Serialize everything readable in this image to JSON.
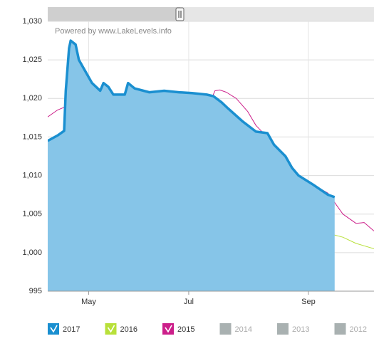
{
  "chart_data": {
    "type": "line",
    "annotation": "Powered by www.LakeLevels.info",
    "xlim": [
      97,
      296
    ],
    "xticks": [
      {
        "value": 122,
        "label": "May"
      },
      {
        "value": 183,
        "label": "Jul"
      },
      {
        "value": 256,
        "label": "Sep"
      }
    ],
    "ylim": [
      995,
      1030
    ],
    "yticks": [
      995,
      {
        "value": 1000,
        "label": "1,000"
      },
      {
        "value": 1005,
        "label": "1,005"
      },
      {
        "value": 1010,
        "label": "1,010"
      },
      {
        "value": 1015,
        "label": "1,015"
      },
      {
        "value": 1020,
        "label": "1,020"
      },
      {
        "value": 1025,
        "label": "1,025"
      },
      {
        "value": 1030,
        "label": "1,030"
      }
    ],
    "grid": true,
    "series": [
      {
        "name": "2017",
        "color": "#1a8fd0",
        "fill": "#86c5e8",
        "area": true,
        "x": [
          97,
          103,
          107,
          108,
          110,
          111,
          114,
          116,
          120,
          124,
          129,
          131,
          134,
          137,
          144,
          146,
          150,
          159,
          168,
          177,
          185,
          194,
          198,
          203,
          207,
          216,
          224,
          231,
          235,
          242,
          246,
          250,
          259,
          268,
          272
        ],
        "values": [
          1014.5,
          1015.2,
          1015.8,
          1021,
          1026.5,
          1027.5,
          1027,
          1025,
          1023.5,
          1022,
          1021,
          1022,
          1021.5,
          1020.5,
          1020.5,
          1022,
          1021.3,
          1020.8,
          1021,
          1020.8,
          1020.7,
          1020.5,
          1020.3,
          1019.5,
          1018.7,
          1017,
          1015.7,
          1015.5,
          1014,
          1012.5,
          1011,
          1010,
          1008.8,
          1007.5,
          1007.2
        ]
      },
      {
        "name": "2016",
        "color": "#b8e03a",
        "x": [
          97,
          107,
          116,
          124,
          133,
          144,
          155,
          159,
          172,
          181,
          189,
          198,
          207,
          216,
          224,
          233,
          242,
          250,
          259,
          268,
          277,
          285,
          296
        ],
        "values": [
          1008,
          1009,
          1010.5,
          1012.5,
          1014,
          1014.8,
          1015,
          1015.8,
          1015.7,
          1015.2,
          1014.3,
          1014.2,
          1013.5,
          1012.5,
          1011,
          1009.2,
          1007.8,
          1005,
          1003.2,
          1002.5,
          1002,
          1001.2,
          1000.5
        ]
      },
      {
        "name": "2015",
        "color": "#cc1f8a",
        "x": [
          97,
          103,
          111,
          118,
          129,
          137,
          146,
          155,
          168,
          181,
          188,
          193,
          197,
          199,
          202,
          206,
          212,
          219,
          224,
          233,
          242,
          250,
          259,
          268,
          277,
          285,
          290,
          296
        ],
        "values": [
          1017.6,
          1018.5,
          1019.2,
          1020,
          1020.2,
          1020.2,
          1020.3,
          1020.1,
          1019.7,
          1019.2,
          1019.6,
          1020.2,
          1020,
          1021,
          1021.1,
          1020.8,
          1020,
          1018.3,
          1016.5,
          1014.5,
          1012,
          1009.8,
          1008.8,
          1007.7,
          1005,
          1003.8,
          1003.9,
          1002.8
        ]
      }
    ],
    "legend_hidden": [
      {
        "name": "2014",
        "color": "#a9b1b1"
      },
      {
        "name": "2013",
        "color": "#a9b1b1"
      },
      {
        "name": "2012",
        "color": "#a9b1b1"
      }
    ]
  }
}
